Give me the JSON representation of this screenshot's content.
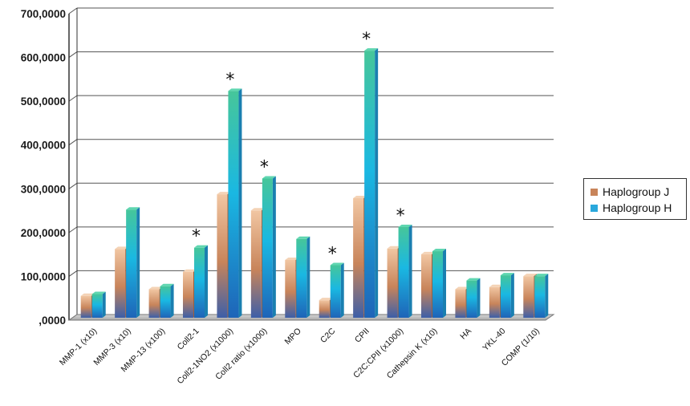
{
  "chart_data": {
    "type": "bar",
    "categories": [
      "MMP-1 (x10)",
      "MMP-3 (x10)",
      "MMP-13 (x100)",
      "Coll2-1",
      "Coll2-1NO2 (x1000)",
      "Coll2 ratio (x1000)",
      "MPO",
      "C2C",
      "CPII",
      "C2C:CPII (x1000)",
      "Cathepsin K (x10)",
      "HA",
      "YKL-40",
      "COMP (1/10)"
    ],
    "series": [
      {
        "name": "Haplogroup J",
        "values": [
          50,
          157,
          65,
          105,
          282,
          245,
          132,
          40,
          273,
          158,
          145,
          65,
          70,
          95
        ]
      },
      {
        "name": "Haplogroup H",
        "values": [
          54,
          247,
          72,
          160,
          518,
          318,
          180,
          120,
          610,
          207,
          152,
          85,
          97,
          95
        ]
      }
    ],
    "significant": [
      false,
      false,
      false,
      true,
      true,
      true,
      false,
      true,
      true,
      true,
      false,
      false,
      false,
      false
    ],
    "significance_marker": "*",
    "yticks": [
      ",0000",
      "100,0000",
      "200,0000",
      "300,0000",
      "400,0000",
      "500,0000",
      "600,0000",
      "700,0000"
    ],
    "ylim": [
      0,
      700
    ],
    "title": "",
    "xlabel": "",
    "ylabel": "",
    "grid": true,
    "legend_position": "right",
    "colors": {
      "Haplogroup J": "#c8845a",
      "Haplogroup H": "#2aa8dc"
    }
  }
}
